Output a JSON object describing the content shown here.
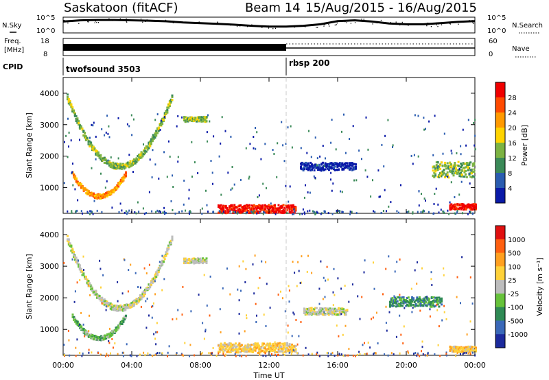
{
  "header": {
    "station": "Saskatoon (fitACF)",
    "beam": "Beam 14",
    "dates": "15/Aug/2015 - 16/Aug/2015"
  },
  "chart_data": [
    {
      "type": "line",
      "ylabel_left": "N.Sky",
      "ylabel_right": "N.Search",
      "yticks": [
        "10^5",
        "10^0"
      ],
      "yticks_right": [
        "10^5",
        "10^0"
      ],
      "x_hours": [
        0,
        1,
        2,
        3,
        4,
        5,
        6,
        7,
        8,
        9,
        10,
        11,
        12,
        13,
        14,
        15,
        16,
        17,
        18,
        19,
        20,
        21,
        22,
        23,
        24
      ],
      "sky_level": [
        0.72,
        0.8,
        0.82,
        0.82,
        0.8,
        0.78,
        0.74,
        0.66,
        0.62,
        0.58,
        0.52,
        0.45,
        0.4,
        0.4,
        0.45,
        0.55,
        0.75,
        0.8,
        0.72,
        0.6,
        0.55,
        0.55,
        0.62,
        0.7,
        0.75
      ]
    },
    {
      "type": "line",
      "ylabel_left": "Freq. [MHz]",
      "ylabel_right": "Nave",
      "yticks": [
        "18",
        "8"
      ],
      "yticks_right": [
        "60",
        "0"
      ],
      "switch_hour": 13,
      "left_regime": "twofsound 3503",
      "right_regime": "rbsp 200"
    },
    {
      "type": "heatmap",
      "ylabel": "Slant Range [km]",
      "yticks": [
        1000,
        2000,
        3000,
        4000
      ],
      "ylim": [
        180,
        4500
      ],
      "xlim": [
        0,
        24
      ],
      "xticks": [
        "00:00",
        "04:00",
        "08:00",
        "12:00",
        "16:00",
        "20:00",
        "00:00"
      ],
      "colorbar_label": "Power [dB]",
      "colorbar_ticks": [
        "4",
        "8",
        "12",
        "16",
        "20",
        "24",
        "28"
      ],
      "regions": [
        {
          "t0": 0.2,
          "t1": 6.3,
          "c": 1700,
          "w": 90,
          "rise": 2200,
          "level": "green"
        },
        {
          "t0": 0.5,
          "t1": 3.6,
          "c": 750,
          "w": 70,
          "rise": 700,
          "level": "orange"
        },
        {
          "t0": 7.0,
          "t1": 8.3,
          "c": 3200,
          "w": 80,
          "rise": 0,
          "level": "green"
        },
        {
          "t0": 9.0,
          "t1": 13.5,
          "c": 350,
          "w": 130,
          "rise": 0,
          "level": "red"
        },
        {
          "t0": 13.8,
          "t1": 17.0,
          "c": 1700,
          "w": 120,
          "rise": 0,
          "level": "blue"
        },
        {
          "t0": 21.5,
          "t1": 23.9,
          "c": 1600,
          "w": 250,
          "rise": 0,
          "level": "green"
        },
        {
          "t0": 22.5,
          "t1": 24.0,
          "c": 420,
          "w": 90,
          "rise": 0,
          "level": "red"
        }
      ]
    },
    {
      "type": "heatmap",
      "ylabel": "Slant Range [km]",
      "yticks": [
        1000,
        2000,
        3000,
        4000
      ],
      "ylim": [
        180,
        4500
      ],
      "xlim": [
        0,
        24
      ],
      "xticks": [
        "00:00",
        "04:00",
        "08:00",
        "12:00",
        "16:00",
        "20:00",
        "00:00"
      ],
      "xlabel": "Time UT",
      "colorbar_label": "Velocity [m s⁻¹]",
      "colorbar_ticks": [
        "1000",
        "500",
        "100",
        "25",
        "-25",
        "-100",
        "-500",
        "-1000"
      ],
      "regions": [
        {
          "t0": 0.2,
          "t1": 6.3,
          "c": 1700,
          "w": 90,
          "rise": 2200,
          "level": "grey"
        },
        {
          "t0": 0.5,
          "t1": 3.6,
          "c": 750,
          "w": 70,
          "rise": 700,
          "level": "green"
        },
        {
          "t0": 7.0,
          "t1": 8.3,
          "c": 3200,
          "w": 80,
          "rise": 0,
          "level": "grey"
        },
        {
          "t0": 9.0,
          "t1": 13.5,
          "c": 450,
          "w": 150,
          "rise": 0,
          "level": "orange"
        },
        {
          "t0": 14.0,
          "t1": 16.5,
          "c": 1600,
          "w": 110,
          "rise": 0,
          "level": "grey"
        },
        {
          "t0": 19.0,
          "t1": 22.0,
          "c": 1900,
          "w": 150,
          "rise": 0,
          "level": "darkgreen"
        },
        {
          "t0": 22.5,
          "t1": 24.0,
          "c": 400,
          "w": 90,
          "rise": 0,
          "level": "orange"
        }
      ]
    }
  ],
  "colors": {
    "power": [
      "#0a1aa8",
      "#2a5cb0",
      "#3b8a58",
      "#7cb342",
      "#ffd400",
      "#ff9a00",
      "#ff4a00",
      "#f00000"
    ],
    "velocity": [
      "#1c2a9c",
      "#3a68b8",
      "#2f8a55",
      "#66c23a",
      "#bdbdbd",
      "#ffd23a",
      "#ffa020",
      "#ff6010",
      "#e01010"
    ]
  }
}
